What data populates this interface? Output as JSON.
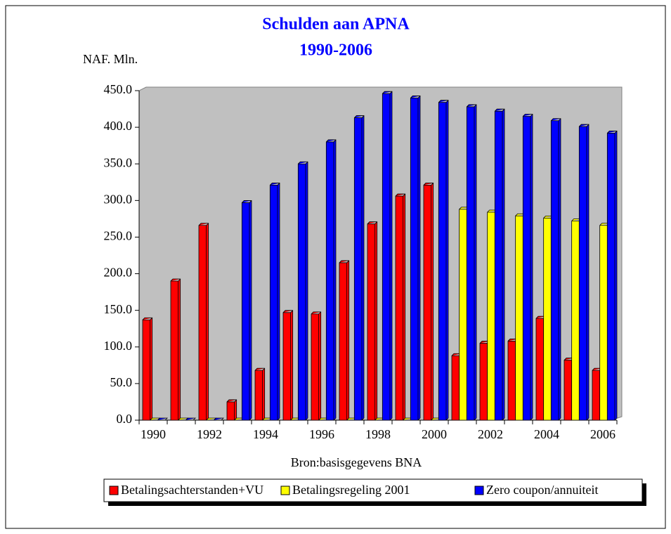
{
  "chart_data": {
    "type": "bar",
    "title": "Schulden aan APNA",
    "subtitle": "1990-2006",
    "y_axis_label": "NAF. Mln.",
    "x_axis_label": "Bron:basisgegevens BNA",
    "categories": [
      1990,
      null,
      1992,
      null,
      1994,
      null,
      1996,
      null,
      1998,
      null,
      2000,
      null,
      2002,
      null,
      2004,
      null,
      2006
    ],
    "series": [
      {
        "name": "Betalingsachterstanden+VU",
        "color": "#ff0000",
        "values": [
          137,
          190,
          266,
          25,
          68,
          147,
          145,
          215,
          268,
          306,
          321,
          88,
          105,
          108,
          139,
          82,
          68
        ]
      },
      {
        "name": "Betalingsregeling 2001",
        "color": "#ffff00",
        "values": [
          0,
          0,
          0,
          0,
          0,
          0,
          0,
          0,
          0,
          0,
          0,
          288,
          284,
          279,
          276,
          272,
          266
        ]
      },
      {
        "name": "Zero coupon/annuiteit",
        "color": "#0000ff",
        "values": [
          0,
          0,
          0,
          297,
          321,
          350,
          380,
          413,
          446,
          440,
          434,
          428,
          422,
          415,
          409,
          401,
          392
        ]
      }
    ],
    "ylim": [
      0,
      450
    ],
    "yticks": [
      {
        "value": 0,
        "label": "0.0"
      },
      {
        "value": 50,
        "label": "50.0"
      },
      {
        "value": 100,
        "label": "100.0"
      },
      {
        "value": 150,
        "label": "150.0"
      },
      {
        "value": 200,
        "label": "200.0"
      },
      {
        "value": 250,
        "label": "250.0"
      },
      {
        "value": 300,
        "label": "300.0"
      },
      {
        "value": 350,
        "label": "350.0"
      },
      {
        "value": 400,
        "label": "400.0"
      },
      {
        "value": 450,
        "label": "450.0"
      }
    ],
    "grid": false,
    "legend": "bottom"
  }
}
